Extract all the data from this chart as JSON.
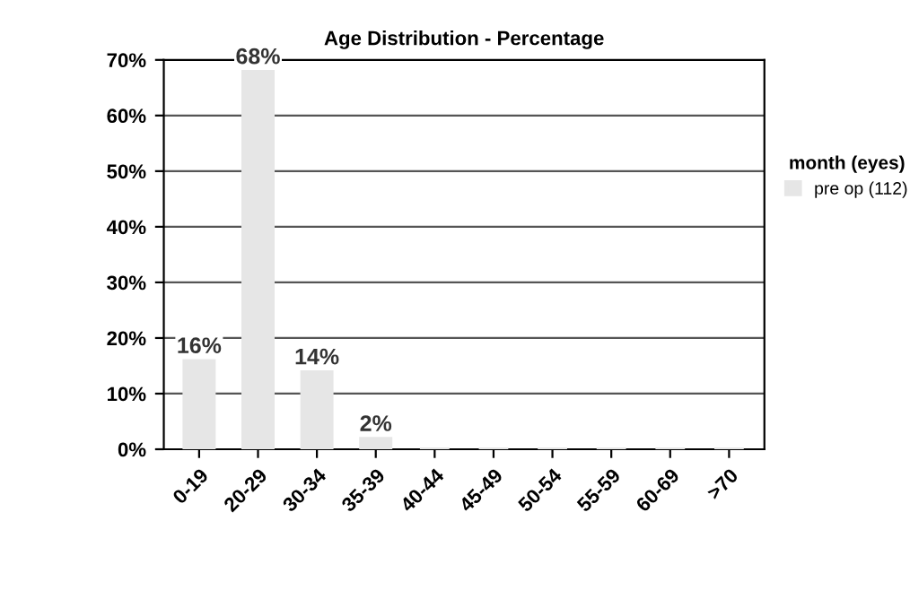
{
  "chart_data": {
    "type": "bar",
    "title": "Age Distribution - Percentage",
    "categories": [
      "0-19",
      "20-29",
      "30-34",
      "35-39",
      "40-44",
      "45-49",
      "50-54",
      "55-59",
      "60-69",
      ">70"
    ],
    "series": [
      {
        "name": "pre op (112)",
        "color": "#e6e6e6",
        "values": [
          16,
          68,
          14,
          2,
          0,
          0,
          0,
          0,
          0,
          0
        ],
        "value_labels": [
          "16%",
          "68%",
          "14%",
          "2%",
          null,
          null,
          null,
          null,
          null,
          null
        ]
      }
    ],
    "ylim": [
      0,
      70
    ],
    "yticks": [
      {
        "value": 0,
        "label": "0%"
      },
      {
        "value": 10,
        "label": "10%"
      },
      {
        "value": 20,
        "label": "20%"
      },
      {
        "value": 30,
        "label": "30%"
      },
      {
        "value": 40,
        "label": "40%"
      },
      {
        "value": 50,
        "label": "50%"
      },
      {
        "value": 60,
        "label": "60%"
      },
      {
        "value": 70,
        "label": "70%"
      }
    ],
    "grid": "y",
    "legend": "right",
    "legend_title": "month (eyes)"
  }
}
